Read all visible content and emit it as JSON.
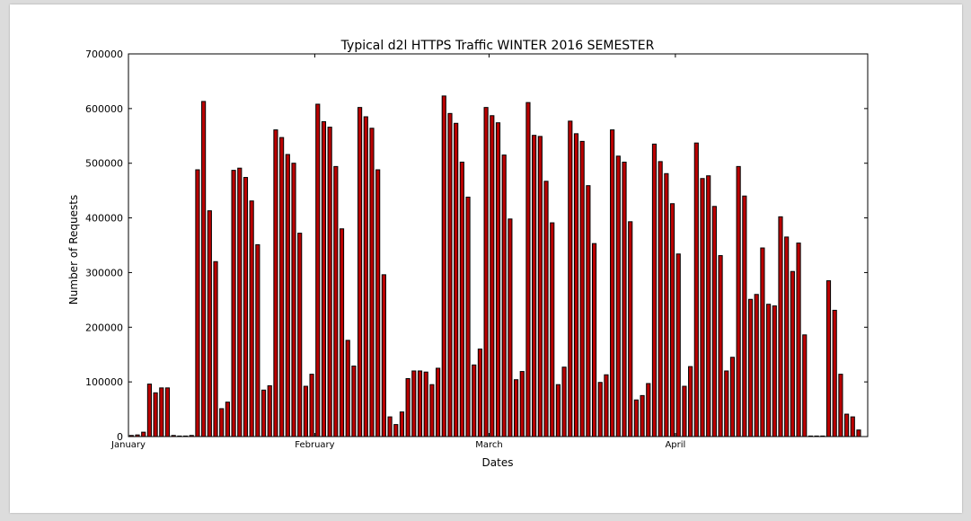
{
  "chart_data": {
    "type": "bar",
    "title": "Typical d2l HTTPS Traffic WINTER 2016 SEMESTER",
    "xlabel": "Dates",
    "ylabel": "Number of Requests",
    "ylim": [
      0,
      700000
    ],
    "yticks": [
      "0",
      "100000",
      "200000",
      "300000",
      "400000",
      "500000",
      "600000",
      "700000"
    ],
    "x_ticks": [
      {
        "label": "January",
        "day": 0
      },
      {
        "label": "February",
        "day": 31
      },
      {
        "label": "March",
        "day": 60
      },
      {
        "label": "April",
        "day": 91
      }
    ],
    "x_range_days": [
      0,
      123
    ],
    "bar_color": "#bb0000",
    "grid": false,
    "start_date": "2016-01-01",
    "values": [
      2000,
      3000,
      8000,
      96000,
      80000,
      89000,
      89000,
      2000,
      1000,
      1000,
      2000,
      488000,
      613000,
      413000,
      320000,
      51000,
      63000,
      487000,
      491000,
      474000,
      431000,
      351000,
      85000,
      93000,
      561000,
      547000,
      516000,
      500000,
      372000,
      92000,
      114000,
      608000,
      576000,
      566000,
      494000,
      380000,
      176000,
      129000,
      602000,
      585000,
      564000,
      488000,
      296000,
      36000,
      22000,
      45000,
      106000,
      120000,
      120000,
      118000,
      95000,
      125000,
      623000,
      591000,
      573000,
      502000,
      438000,
      131000,
      160000,
      602000,
      587000,
      574000,
      515000,
      398000,
      104000,
      119000,
      611000,
      551000,
      549000,
      467000,
      391000,
      95000,
      127000,
      577000,
      554000,
      540000,
      459000,
      353000,
      99000,
      113000,
      561000,
      513000,
      502000,
      393000,
      67000,
      75000,
      97000,
      535000,
      503000,
      481000,
      426000,
      334000,
      92000,
      128000,
      537000,
      472000,
      477000,
      421000,
      331000,
      120000,
      145000,
      494000,
      440000,
      251000,
      260000,
      345000,
      242000,
      239000,
      402000,
      365000,
      302000,
      354000,
      186000,
      1000,
      1000,
      1000,
      285000,
      231000,
      114000,
      41000,
      36000,
      12000
    ]
  }
}
